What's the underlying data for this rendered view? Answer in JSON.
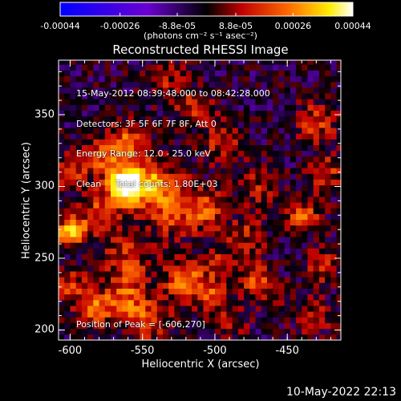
{
  "colorbar": {
    "ticks": [
      "-0.00044",
      "-0.00026",
      "-8.8e-05",
      "8.8e-05",
      "0.00026",
      "0.00044"
    ],
    "tick_values": [
      -0.00044,
      -0.00026,
      -8.8e-05,
      8.8e-05,
      0.00026,
      0.00044
    ],
    "range": [
      -0.00044,
      0.00044
    ],
    "colors": [
      "#0000ff",
      "#7800c8",
      "#000000",
      "#c80000",
      "#ff7800",
      "#ffff00",
      "#ffffff"
    ],
    "units": "(photons cm⁻² s⁻¹ asec⁻²)"
  },
  "chart_data": {
    "type": "heatmap",
    "title": "Reconstructed RHESSI Image",
    "xlabel": "Heliocentric X (arcsec)",
    "ylabel": "Heliocentric Y (arcsec)",
    "xlim": [
      -608,
      -413
    ],
    "ylim": [
      193,
      388
    ],
    "x_ticks": [
      "-600",
      "-550",
      "-500",
      "-450"
    ],
    "x_tick_values": [
      -600,
      -550,
      -500,
      -450
    ],
    "y_ticks": [
      "200",
      "250",
      "300",
      "350"
    ],
    "y_tick_values": [
      200,
      250,
      300,
      350
    ],
    "pixel_size_arcsec": 4,
    "sources": [
      {
        "x": -563,
        "y": 300,
        "intensity": 1.0,
        "width": 9
      },
      {
        "x": -580,
        "y": 280,
        "intensity": 0.5,
        "width": 10
      },
      {
        "x": -600,
        "y": 268,
        "intensity": 0.85,
        "width": 7
      },
      {
        "x": -545,
        "y": 303,
        "intensity": 0.6,
        "width": 12
      },
      {
        "x": -528,
        "y": 285,
        "intensity": 0.5,
        "width": 14
      },
      {
        "x": -560,
        "y": 330,
        "intensity": 0.55,
        "width": 10
      },
      {
        "x": -577,
        "y": 322,
        "intensity": 0.5,
        "width": 9
      },
      {
        "x": -600,
        "y": 310,
        "intensity": 0.4,
        "width": 9
      },
      {
        "x": -560,
        "y": 248,
        "intensity": 0.45,
        "width": 12
      },
      {
        "x": -522,
        "y": 235,
        "intensity": 0.7,
        "width": 9
      },
      {
        "x": -503,
        "y": 225,
        "intensity": 0.5,
        "width": 8
      },
      {
        "x": -562,
        "y": 222,
        "intensity": 0.5,
        "width": 10
      },
      {
        "x": -583,
        "y": 215,
        "intensity": 0.55,
        "width": 9
      },
      {
        "x": -545,
        "y": 207,
        "intensity": 0.5,
        "width": 10
      },
      {
        "x": -600,
        "y": 232,
        "intensity": 0.45,
        "width": 8
      },
      {
        "x": -505,
        "y": 285,
        "intensity": 0.45,
        "width": 9
      },
      {
        "x": -495,
        "y": 330,
        "intensity": 0.35,
        "width": 10
      },
      {
        "x": -515,
        "y": 355,
        "intensity": 0.35,
        "width": 10
      },
      {
        "x": -535,
        "y": 375,
        "intensity": 0.3,
        "width": 10
      },
      {
        "x": -478,
        "y": 265,
        "intensity": 0.35,
        "width": 10
      },
      {
        "x": -470,
        "y": 300,
        "intensity": 0.3,
        "width": 10
      },
      {
        "x": -430,
        "y": 345,
        "intensity": 0.45,
        "width": 10
      },
      {
        "x": -423,
        "y": 310,
        "intensity": 0.4,
        "width": 9
      },
      {
        "x": -440,
        "y": 280,
        "intensity": 0.5,
        "width": 9
      },
      {
        "x": -425,
        "y": 245,
        "intensity": 0.45,
        "width": 8
      },
      {
        "x": -432,
        "y": 210,
        "intensity": 0.35,
        "width": 9
      },
      {
        "x": -465,
        "y": 228,
        "intensity": 0.3,
        "width": 9
      },
      {
        "x": -490,
        "y": 205,
        "intensity": 0.3,
        "width": 9
      },
      {
        "x": -473,
        "y": 238,
        "intensity": 0.35,
        "width": 8
      },
      {
        "x": -500,
        "y": 248,
        "intensity": 0.3,
        "width": 9
      }
    ],
    "noise_amplitude": 0.22,
    "background_level": -0.08
  },
  "info_lines": [
    "15-May-2012 08:39:48.000 to 08:42:28.000",
    "Detectors: 3F 5F 6F 7F 8F, Att 0",
    "Energy Range: 12.0 - 25.0 keV",
    "Clean     Total counts: 1.80E+03"
  ],
  "peak_label": "Position of Peak = [-606,270]",
  "timestamp": "10-May-2022 22:13"
}
